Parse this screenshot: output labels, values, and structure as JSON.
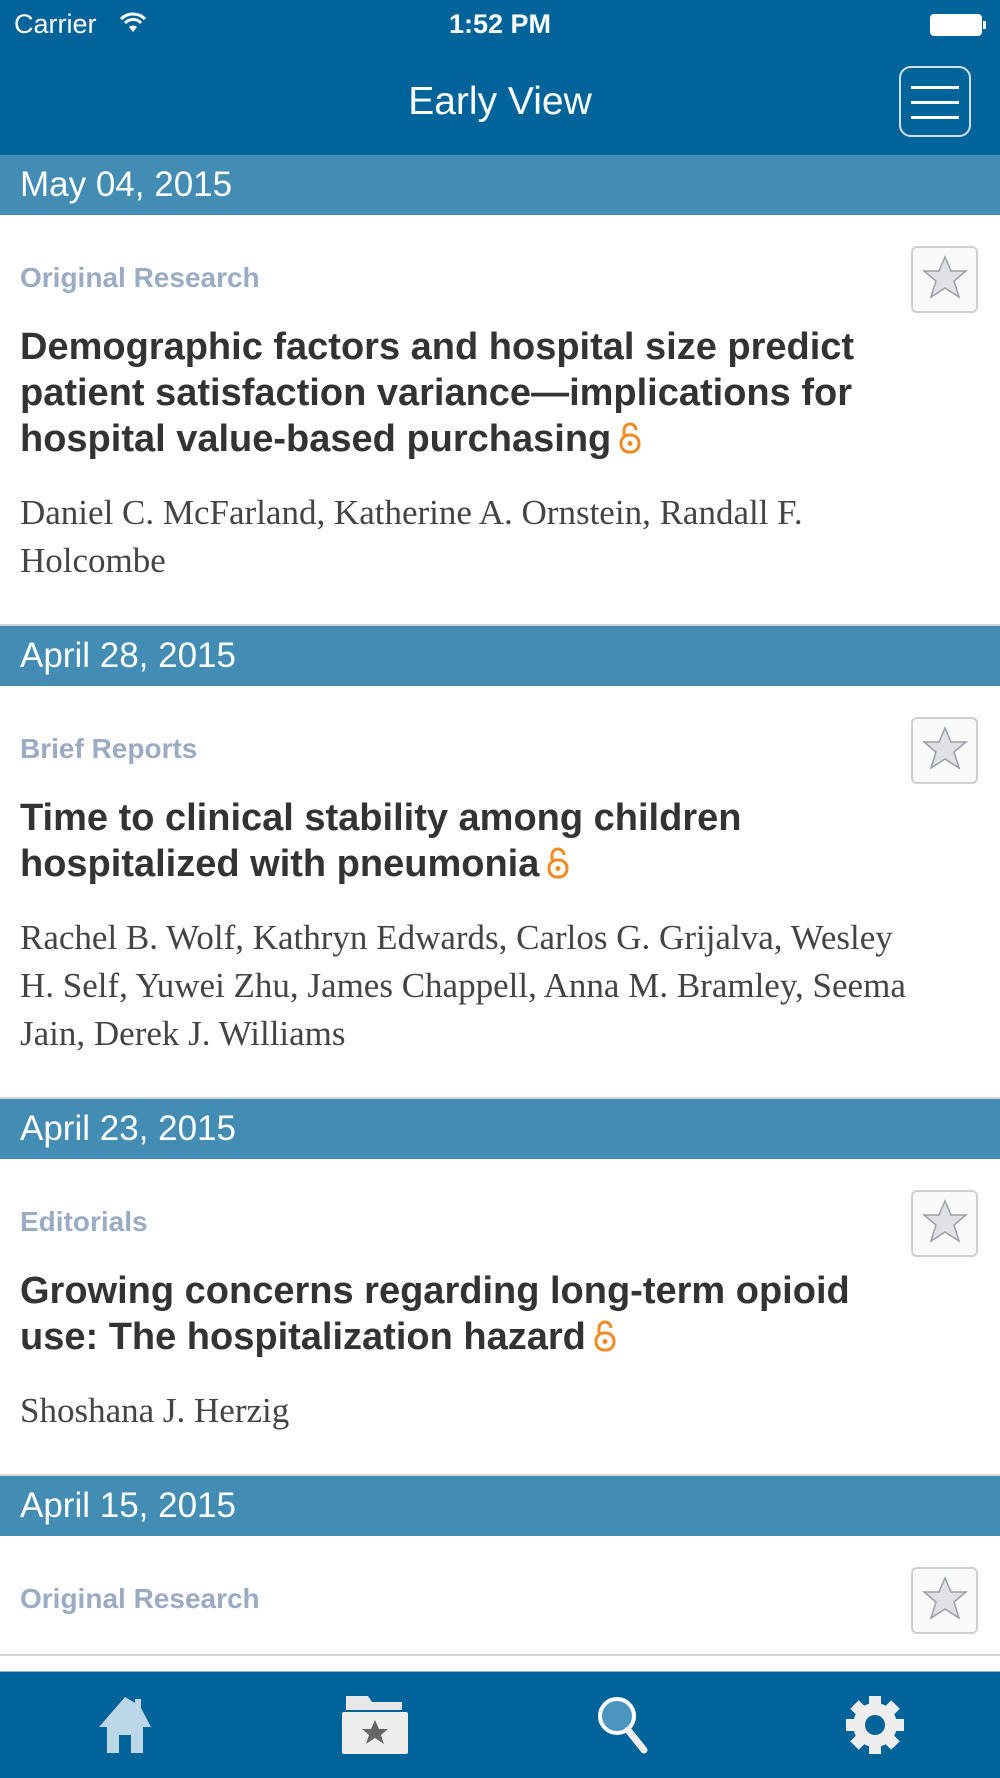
{
  "status_bar": {
    "carrier": "Carrier",
    "time": "1:52 PM"
  },
  "nav": {
    "title": "Early View"
  },
  "sections": [
    {
      "date": "May 04, 2015",
      "category": "Original Research",
      "title": "Demographic factors and hospital size predict patient satisfaction variance—implications for hospital value-based purchasing",
      "authors": "Daniel C. McFarland, Katherine A. Ornstein, Randall F. Holcombe",
      "open_access": true
    },
    {
      "date": "April 28, 2015",
      "category": "Brief Reports",
      "title": "Time to clinical stability among children hospitalized with pneumonia",
      "authors": "Rachel B. Wolf, Kathryn Edwards, Carlos G. Grijalva, Wesley H. Self, Yuwei Zhu, James Chappell, Anna M. Bramley, Seema Jain, Derek J. Williams",
      "open_access": true
    },
    {
      "date": "April 23, 2015",
      "category": "Editorials",
      "title": "Growing concerns regarding long-term opioid use: The hospitalization hazard",
      "authors": "Shoshana J. Herzig",
      "open_access": true
    },
    {
      "date": "April 15, 2015",
      "category": "Original Research"
    }
  ],
  "tabs": [
    "home-icon",
    "favorites-folder-icon",
    "search-icon",
    "settings-gear-icon"
  ],
  "colors": {
    "nav": "#00649a",
    "date_header": "#438cb4",
    "category": "#9aabc3",
    "lock": "#f08a24"
  }
}
